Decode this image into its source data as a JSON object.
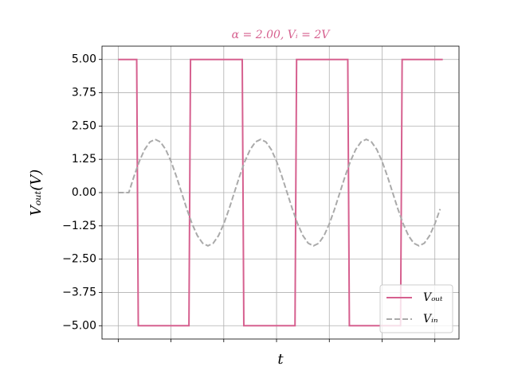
{
  "chart_data": {
    "type": "line",
    "title": "α = 2.00, Vᵢ = 2V",
    "x_label": "t",
    "y_label": "Vₒᵤₜ(V)",
    "xlim": [
      -0.3075,
      6.4575
    ],
    "xticks": [
      0,
      1,
      2,
      3,
      4,
      5,
      6
    ],
    "ylim": [
      -5.5,
      5.5
    ],
    "yticks": [
      {
        "value": -5,
        "label": "−5.00"
      },
      {
        "value": -3.75,
        "label": "−3.75"
      },
      {
        "value": -2.5,
        "label": "−2.50"
      },
      {
        "value": -1.25,
        "label": "−1.25"
      },
      {
        "value": 0,
        "label": "0.00"
      },
      {
        "value": 1.25,
        "label": "1.25"
      },
      {
        "value": 2.5,
        "label": "2.50"
      },
      {
        "value": 3.75,
        "label": "3.75"
      },
      {
        "value": 5,
        "label": "5.00"
      }
    ],
    "grid": true,
    "legend": "lower right",
    "series": [
      {
        "name": "Vₒᵤₜ",
        "color": "#d6608f",
        "dash": "solid",
        "x": [
          0,
          0.35,
          0.38,
          1.34,
          1.37,
          2.35,
          2.38,
          3.35,
          3.38,
          4.35,
          4.38,
          5.35,
          5.38,
          6.15
        ],
        "values": [
          5,
          5,
          -5,
          -5,
          5,
          5,
          -5,
          -5,
          5,
          5,
          -5,
          -5,
          5,
          5
        ]
      },
      {
        "name": "Vᵢₙ",
        "color": "#aaaaaa",
        "dash": "dashed",
        "x": [
          0,
          0.1,
          0.2,
          0.3,
          0.4,
          0.5,
          0.6,
          0.7,
          0.8,
          0.9,
          1.0,
          1.1,
          1.2,
          1.3,
          1.4,
          1.5,
          1.6,
          1.7,
          1.8,
          1.9,
          2.0,
          2.1,
          2.2,
          2.3,
          2.4,
          2.5,
          2.6,
          2.7,
          2.8,
          2.9,
          3.0,
          3.1,
          3.2,
          3.3,
          3.4,
          3.5,
          3.6,
          3.7,
          3.8,
          3.9,
          4.0,
          4.1,
          4.2,
          4.3,
          4.4,
          4.5,
          4.6,
          4.7,
          4.8,
          4.9,
          5.0,
          5.1,
          5.2,
          5.3,
          5.4,
          5.5,
          5.6,
          5.7,
          5.8,
          5.9,
          6.0,
          6.1
        ],
        "values": [
          0,
          0,
          0,
          0.618,
          1.176,
          1.618,
          1.902,
          2,
          1.902,
          1.618,
          1.176,
          0.618,
          0,
          -0.618,
          -1.176,
          -1.618,
          -1.902,
          -2,
          -1.902,
          -1.618,
          -1.176,
          -0.618,
          0,
          0.618,
          1.176,
          1.618,
          1.902,
          2,
          1.902,
          1.618,
          1.176,
          0.618,
          0,
          -0.618,
          -1.176,
          -1.618,
          -1.902,
          -2,
          -1.902,
          -1.618,
          -1.176,
          -0.618,
          0,
          0.618,
          1.176,
          1.618,
          1.902,
          2,
          1.902,
          1.618,
          1.176,
          0.618,
          0,
          -0.618,
          -1.176,
          -1.618,
          -1.902,
          -2,
          -1.902,
          -1.618,
          -1.176,
          -0.618
        ]
      }
    ]
  }
}
